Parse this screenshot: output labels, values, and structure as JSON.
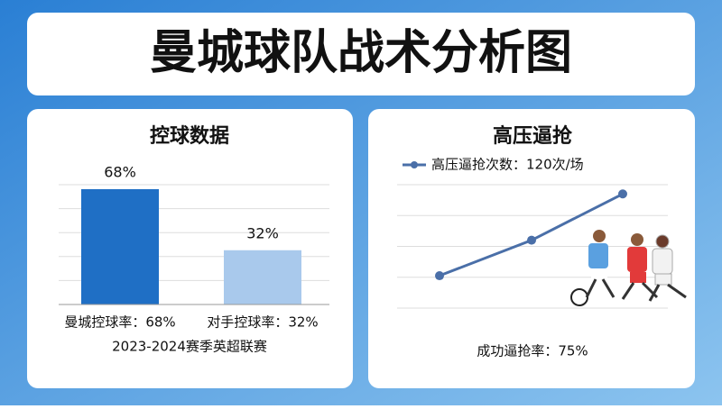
{
  "header": {
    "title": "曼城球队战术分析图"
  },
  "chart_data": [
    {
      "type": "bar",
      "title": "控球数据",
      "categories": [
        "曼城控球率：68%",
        "对手控球率：32%"
      ],
      "values": [
        68,
        32
      ],
      "value_labels": [
        "68%",
        "32%"
      ],
      "colors": [
        "#1f6fc5",
        "#a9c9ec"
      ],
      "grid": true,
      "footer": "2023-2024赛季英超联赛"
    },
    {
      "type": "line",
      "title": "高压逼抢",
      "categories": [
        null,
        null,
        null
      ],
      "series": [
        {
          "name": "高压逼抢次数：120次/场",
          "color": "#4a6fa8",
          "values": [
            1.05,
            2.2,
            3.7
          ]
        }
      ],
      "ylim": [
        0,
        4
      ],
      "grid": true,
      "footer": "成功逼抢率：75%"
    }
  ]
}
